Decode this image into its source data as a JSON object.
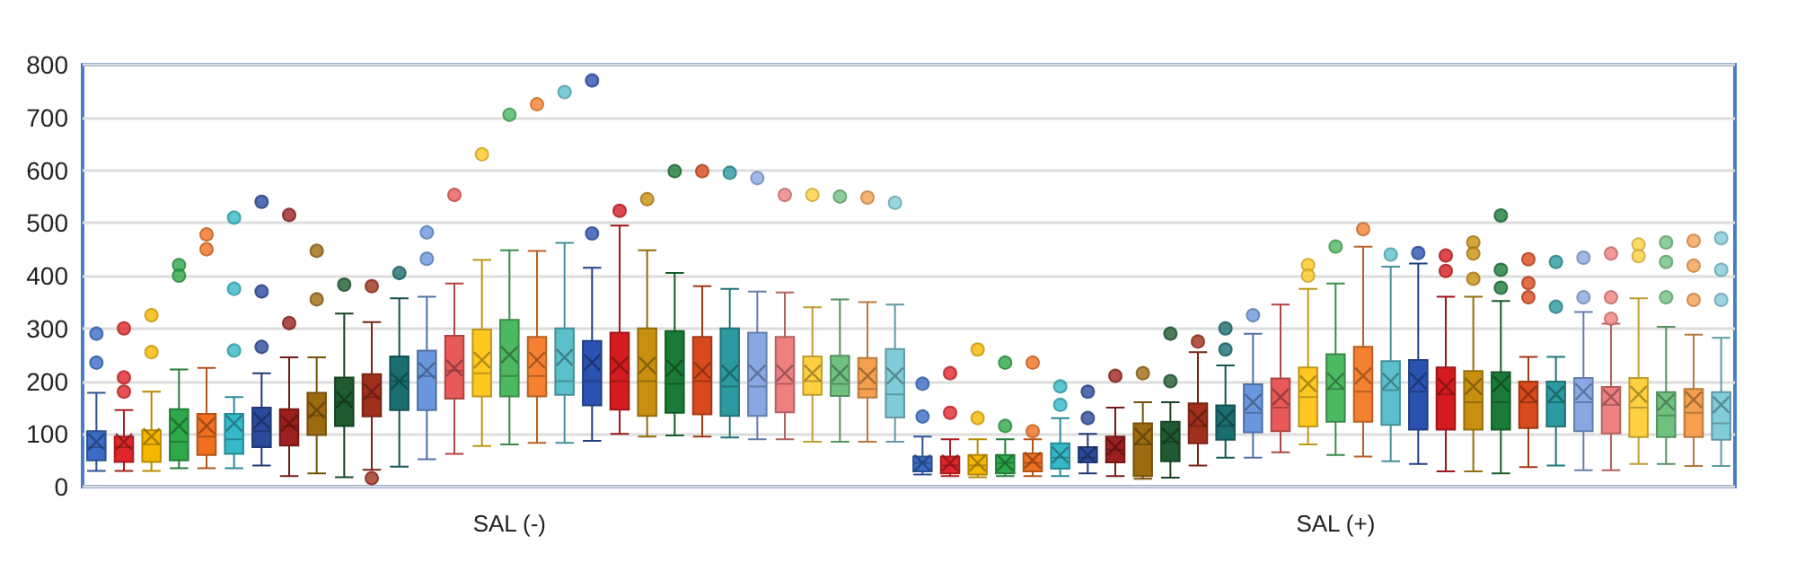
{
  "chart_data": {
    "type": "box",
    "categories": [
      null,
      null,
      null,
      null,
      null,
      null,
      null,
      null,
      null,
      null,
      null,
      null,
      null,
      null,
      null,
      "SAL (-)",
      null,
      null,
      null,
      null,
      null,
      null,
      null,
      null,
      null,
      null,
      null,
      null,
      null,
      null,
      null,
      null,
      null,
      null,
      null,
      null,
      null,
      null,
      null,
      null,
      null,
      null,
      null,
      null,
      null,
      "SAL (+)",
      null,
      null,
      null,
      null,
      null,
      null,
      null,
      null,
      null,
      null,
      null,
      null,
      null,
      null
    ],
    "colors": [
      "#3a6cc4",
      "#e0262a",
      "#f5b800",
      "#2ea84a",
      "#f07020",
      "#35b8c8",
      "#2a4a9c",
      "#9c2020",
      "#9c6a10",
      "#1f5a30",
      "#a0301c",
      "#1a6e70",
      "#6a96dc",
      "#e85a5a",
      "#ffc820",
      "#4cb860",
      "#f58030",
      "#5cc0cc",
      "#2a52b0",
      "#d41c20",
      "#c89010",
      "#1a7a38",
      "#d84a1c",
      "#2a9aa0",
      "#88a8e4",
      "#ee8080",
      "#ffd040",
      "#70c080",
      "#f5a050",
      "#80ccd8",
      "#3a6cc4",
      "#e0262a",
      "#f5b800",
      "#2ea84a",
      "#f07020",
      "#35b8c8",
      "#2a4a9c",
      "#9c2020",
      "#9c6a10",
      "#1f5a30",
      "#a0301c",
      "#1a6e70",
      "#6a96dc",
      "#e85a5a",
      "#ffc820",
      "#4cb860",
      "#f58030",
      "#5cc0cc",
      "#2a52b0",
      "#d41c20",
      "#c89010",
      "#1a7a38",
      "#d84a1c",
      "#2a9aa0",
      "#88a8e4",
      "#ee8080",
      "#ffd040",
      "#70c080",
      "#f5a050",
      "#80ccd8"
    ],
    "boxes": [
      {
        "low": 30,
        "q1": 50,
        "median": 75,
        "q3": 105,
        "high": 178,
        "mean": 85,
        "outliers": [
          290,
          235
        ]
      },
      {
        "low": 30,
        "q1": 47,
        "median": 75,
        "q3": 95,
        "high": 145,
        "mean": 85,
        "outliers": [
          300,
          207,
          180
        ]
      },
      {
        "low": 30,
        "q1": 47,
        "median": 80,
        "q3": 107,
        "high": 180,
        "mean": 95,
        "outliers": [
          325,
          255
        ]
      },
      {
        "low": 35,
        "q1": 50,
        "median": 85,
        "q3": 147,
        "high": 222,
        "mean": 115,
        "outliers": [
          420,
          400
        ]
      },
      {
        "low": 35,
        "q1": 60,
        "median": 95,
        "q3": 138,
        "high": 225,
        "mean": 115,
        "outliers": [
          478,
          450
        ]
      },
      {
        "low": 35,
        "q1": 62,
        "median": 90,
        "q3": 138,
        "high": 170,
        "mean": 120,
        "outliers": [
          510,
          375,
          258
        ]
      },
      {
        "low": 40,
        "q1": 75,
        "median": 105,
        "q3": 150,
        "high": 215,
        "mean": 125,
        "outliers": [
          540,
          370,
          265
        ]
      },
      {
        "low": 20,
        "q1": 78,
        "median": 115,
        "q3": 147,
        "high": 245,
        "mean": 120,
        "outliers": [
          515,
          310
        ]
      },
      {
        "low": 25,
        "q1": 98,
        "median": 135,
        "q3": 178,
        "high": 245,
        "mean": 145,
        "outliers": [
          447,
          355
        ]
      },
      {
        "low": 18,
        "q1": 115,
        "median": 160,
        "q3": 207,
        "high": 328,
        "mean": 165,
        "outliers": [
          383
        ]
      },
      {
        "low": 32,
        "q1": 133,
        "median": 170,
        "q3": 213,
        "high": 312,
        "mean": 180,
        "outliers": [
          380,
          16
        ]
      },
      {
        "low": 38,
        "q1": 145,
        "median": 200,
        "q3": 247,
        "high": 357,
        "mean": 200,
        "outliers": [
          405
        ]
      },
      {
        "low": 52,
        "q1": 145,
        "median": 210,
        "q3": 258,
        "high": 360,
        "mean": 220,
        "outliers": [
          482,
          432
        ]
      },
      {
        "low": 62,
        "q1": 167,
        "median": 220,
        "q3": 286,
        "high": 385,
        "mean": 225,
        "outliers": [
          553
        ]
      },
      {
        "low": 77,
        "q1": 171,
        "median": 215,
        "q3": 298,
        "high": 430,
        "mean": 240,
        "outliers": [
          630
        ]
      },
      {
        "low": 80,
        "q1": 171,
        "median": 210,
        "q3": 316,
        "high": 448,
        "mean": 250,
        "outliers": [
          705
        ]
      },
      {
        "low": 83,
        "q1": 171,
        "median": 210,
        "q3": 284,
        "high": 447,
        "mean": 240,
        "outliers": [
          725
        ]
      },
      {
        "low": 83,
        "q1": 174,
        "median": 200,
        "q3": 300,
        "high": 462,
        "mean": 245,
        "outliers": [
          748
        ]
      },
      {
        "low": 87,
        "q1": 154,
        "median": 200,
        "q3": 276,
        "high": 415,
        "mean": 235,
        "outliers": [
          480,
          770
        ]
      },
      {
        "low": 100,
        "q1": 146,
        "median": 200,
        "q3": 292,
        "high": 495,
        "mean": 230,
        "outliers": [
          523
        ]
      },
      {
        "low": 95,
        "q1": 134,
        "median": 200,
        "q3": 300,
        "high": 448,
        "mean": 230,
        "outliers": [
          545
        ]
      },
      {
        "low": 97,
        "q1": 140,
        "median": 195,
        "q3": 295,
        "high": 405,
        "mean": 225,
        "outliers": [
          598
        ]
      },
      {
        "low": 95,
        "q1": 137,
        "median": 200,
        "q3": 284,
        "high": 380,
        "mean": 220,
        "outliers": [
          598
        ]
      },
      {
        "low": 93,
        "q1": 134,
        "median": 190,
        "q3": 300,
        "high": 375,
        "mean": 215,
        "outliers": [
          595
        ]
      },
      {
        "low": 90,
        "q1": 134,
        "median": 190,
        "q3": 292,
        "high": 370,
        "mean": 215,
        "outliers": [
          585
        ]
      },
      {
        "low": 90,
        "q1": 141,
        "median": 195,
        "q3": 284,
        "high": 368,
        "mean": 215,
        "outliers": [
          553
        ]
      },
      {
        "low": 85,
        "q1": 174,
        "median": 200,
        "q3": 247,
        "high": 340,
        "mean": 215,
        "outliers": [
          553
        ]
      },
      {
        "low": 85,
        "q1": 172,
        "median": 195,
        "q3": 248,
        "high": 355,
        "mean": 215,
        "outliers": [
          550
        ]
      },
      {
        "low": 85,
        "q1": 169,
        "median": 185,
        "q3": 244,
        "high": 350,
        "mean": 210,
        "outliers": [
          548
        ]
      },
      {
        "low": 85,
        "q1": 131,
        "median": 175,
        "q3": 261,
        "high": 345,
        "mean": 210,
        "outliers": [
          538
        ]
      },
      {
        "low": 23,
        "q1": 29,
        "median": 45,
        "q3": 57,
        "high": 95,
        "mean": 45,
        "outliers": [
          195,
          133
        ]
      },
      {
        "low": 20,
        "q1": 25,
        "median": 40,
        "q3": 57,
        "high": 90,
        "mean": 45,
        "outliers": [
          215,
          140
        ]
      },
      {
        "low": 18,
        "q1": 23,
        "median": 40,
        "q3": 60,
        "high": 90,
        "mean": 45,
        "outliers": [
          260,
          130
        ]
      },
      {
        "low": 20,
        "q1": 25,
        "median": 45,
        "q3": 60,
        "high": 90,
        "mean": 45,
        "outliers": [
          235,
          115
        ]
      },
      {
        "low": 20,
        "q1": 29,
        "median": 45,
        "q3": 63,
        "high": 90,
        "mean": 50,
        "outliers": [
          235,
          105
        ]
      },
      {
        "low": 20,
        "q1": 34,
        "median": 55,
        "q3": 82,
        "high": 130,
        "mean": 60,
        "outliers": [
          190,
          155
        ]
      },
      {
        "low": 25,
        "q1": 46,
        "median": 55,
        "q3": 75,
        "high": 100,
        "mean": 60,
        "outliers": [
          180,
          130
        ]
      },
      {
        "low": 20,
        "q1": 46,
        "median": 70,
        "q3": 95,
        "high": 150,
        "mean": 75,
        "outliers": [
          210
        ]
      },
      {
        "low": 15,
        "q1": 20,
        "median": 80,
        "q3": 120,
        "high": 160,
        "mean": 95,
        "outliers": [
          215
        ]
      },
      {
        "low": 17,
        "q1": 48,
        "median": 85,
        "q3": 123,
        "high": 160,
        "mean": 95,
        "outliers": [
          290,
          200
        ]
      },
      {
        "low": 40,
        "q1": 82,
        "median": 115,
        "q3": 158,
        "high": 255,
        "mean": 130,
        "outliers": [
          275
        ]
      },
      {
        "low": 55,
        "q1": 89,
        "median": 115,
        "q3": 154,
        "high": 230,
        "mean": 130,
        "outliers": [
          300,
          260
        ]
      },
      {
        "low": 55,
        "q1": 103,
        "median": 140,
        "q3": 194,
        "high": 290,
        "mean": 160,
        "outliers": [
          325
        ]
      },
      {
        "low": 65,
        "q1": 105,
        "median": 150,
        "q3": 205,
        "high": 345,
        "mean": 170
      },
      {
        "low": 80,
        "q1": 114,
        "median": 170,
        "q3": 226,
        "high": 375,
        "mean": 195,
        "outliers": [
          420,
          400
        ]
      },
      {
        "low": 60,
        "q1": 123,
        "median": 185,
        "q3": 251,
        "high": 385,
        "mean": 200,
        "outliers": [
          455
        ]
      },
      {
        "low": 57,
        "q1": 123,
        "median": 180,
        "q3": 265,
        "high": 455,
        "mean": 210,
        "outliers": [
          488
        ]
      },
      {
        "low": 48,
        "q1": 117,
        "median": 183,
        "q3": 238,
        "high": 417,
        "mean": 200,
        "outliers": [
          440
        ]
      },
      {
        "low": 43,
        "q1": 108,
        "median": 180,
        "q3": 240,
        "high": 423,
        "mean": 200,
        "outliers": [
          443
        ]
      },
      {
        "low": 29,
        "q1": 108,
        "median": 175,
        "q3": 226,
        "high": 360,
        "mean": 190,
        "outliers": [
          438,
          409
        ]
      },
      {
        "low": 29,
        "q1": 108,
        "median": 160,
        "q3": 219,
        "high": 360,
        "mean": 190,
        "outliers": [
          463,
          442,
          394
        ]
      },
      {
        "low": 25,
        "q1": 108,
        "median": 160,
        "q3": 217,
        "high": 352,
        "mean": 195,
        "outliers": [
          514,
          411,
          377
        ]
      },
      {
        "low": 37,
        "q1": 111,
        "median": 160,
        "q3": 199,
        "high": 246,
        "mean": 175,
        "outliers": [
          431,
          386,
          359
        ]
      },
      {
        "low": 40,
        "q1": 114,
        "median": 160,
        "q3": 199,
        "high": 246,
        "mean": 175,
        "outliers": [
          426,
          341
        ]
      },
      {
        "low": 31,
        "q1": 105,
        "median": 160,
        "q3": 206,
        "high": 331,
        "mean": 180,
        "outliers": [
          434,
          359
        ]
      },
      {
        "low": 31,
        "q1": 101,
        "median": 155,
        "q3": 189,
        "high": 309,
        "mean": 170,
        "outliers": [
          442,
          359,
          318
        ]
      },
      {
        "low": 43,
        "q1": 94,
        "median": 150,
        "q3": 206,
        "high": 357,
        "mean": 175,
        "outliers": [
          459,
          437
        ]
      },
      {
        "low": 43,
        "q1": 94,
        "median": 135,
        "q3": 179,
        "high": 303,
        "mean": 160,
        "outliers": [
          463,
          426,
          359
        ]
      },
      {
        "low": 39,
        "q1": 94,
        "median": 140,
        "q3": 185,
        "high": 288,
        "mean": 165,
        "outliers": [
          466,
          419,
          354
        ]
      },
      {
        "low": 39,
        "q1": 89,
        "median": 120,
        "q3": 179,
        "high": 282,
        "mean": 155,
        "outliers": [
          471,
          411,
          354
        ]
      }
    ],
    "ylim": [
      0,
      800
    ],
    "yticks": [
      0,
      100,
      200,
      300,
      400,
      500,
      600,
      700,
      800
    ],
    "grid": "y"
  }
}
